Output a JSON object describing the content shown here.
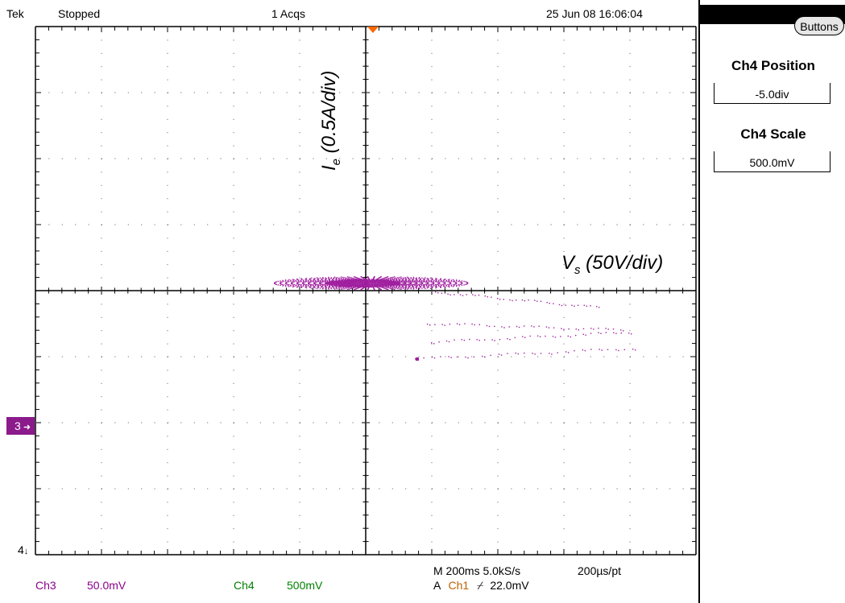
{
  "header": {
    "brand": "Tek",
    "run_state": "Stopped",
    "acquisitions": "1 Acqs",
    "datetime": "25 Jun 08 16:06:04"
  },
  "side_menu": {
    "buttons_label": "Buttons",
    "items": [
      {
        "title": "Ch4 Position",
        "value": "-5.0div"
      },
      {
        "title": "Ch4 Scale",
        "value": "500.0mV"
      }
    ]
  },
  "annotations": {
    "y_axis": {
      "symbol": "I",
      "sub": "e",
      "rest": " (0.5A/div)"
    },
    "x_axis": {
      "symbol": "V",
      "sub": "s",
      "rest": " (50V/div)"
    }
  },
  "markers": {
    "ch3_marker": "3",
    "ch4_marker": "4"
  },
  "status": {
    "ch3_label": "Ch3",
    "ch3_scale": "50.0mV",
    "ch4_label": "Ch4",
    "ch4_scale": "500mV",
    "timebase": "M 200ms 5.0kS/s",
    "per_point": "200µs/pt",
    "trigger_mode": "A",
    "trigger_source": "Ch1",
    "trigger_slope": "⌿",
    "trigger_level": "22.0mV"
  },
  "colors": {
    "trace": "#a020a0",
    "grid": "#000000",
    "trigger_marker": "#ff6600",
    "ch3": "#8b008b",
    "ch4": "#008000",
    "ch1": "#c06000"
  }
}
